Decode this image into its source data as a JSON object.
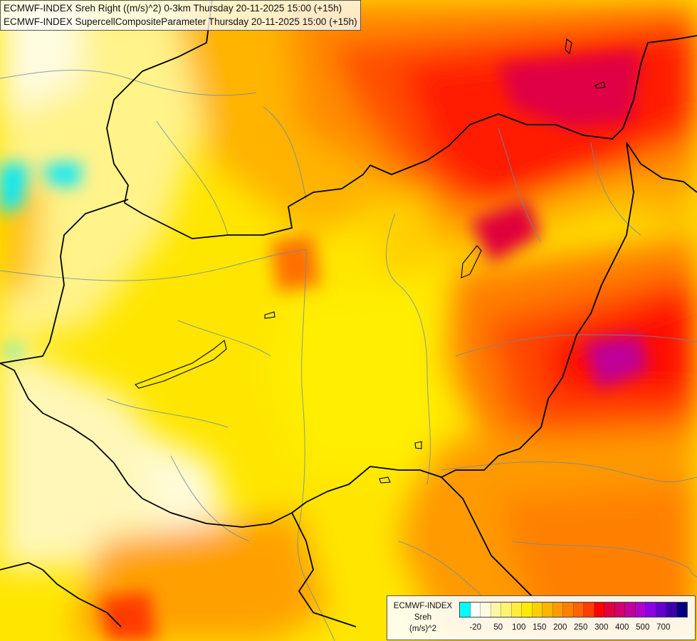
{
  "titles": {
    "line1": "ECMWF-INDEX Sreh Right ((m/s)^2) 0-3km Thursday 20-11-2025 15:00 (+15h)",
    "line2": "ECMWF-INDEX SupercellCompositeParameter Thursday 20-11-2025 15:00 (+15h)"
  },
  "legend": {
    "model": "ECMWF-INDEX",
    "parameter": "Sreh",
    "unit": "(m/s)^2",
    "colors": [
      "#00ffff",
      "#ffffff",
      "#fffbdf",
      "#fff6a6",
      "#fff36f",
      "#ffef3a",
      "#ffea00",
      "#ffd000",
      "#ffb400",
      "#ff9b00",
      "#ff8000",
      "#ff6400",
      "#ff3d00",
      "#ff0000",
      "#e00040",
      "#d0006e",
      "#c0009a",
      "#b000cc",
      "#8c00e6",
      "#6400cc",
      "#3c00a8",
      "#000080"
    ],
    "ticks": [
      "-20",
      "50",
      "100",
      "150",
      "200",
      "250",
      "300",
      "400",
      "500",
      "700"
    ]
  }
}
